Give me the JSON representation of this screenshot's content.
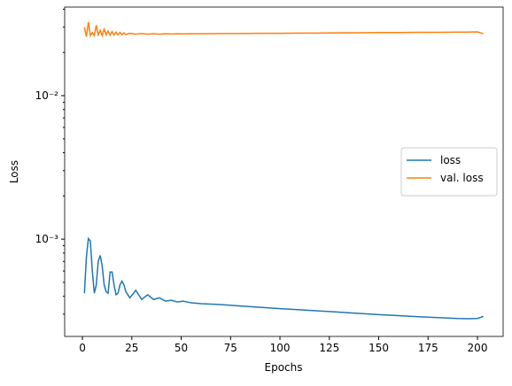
{
  "chart_data": {
    "type": "line",
    "x_label": "Epochs",
    "y_label": "Loss",
    "log_y": true,
    "legend": "center right",
    "x": [
      1,
      2,
      3,
      4,
      5,
      6,
      7,
      8,
      9,
      10,
      11,
      12,
      13,
      14,
      15,
      16,
      17,
      18,
      19,
      20,
      21,
      22,
      24,
      27,
      30,
      33,
      36,
      39,
      42,
      45,
      48,
      51,
      55,
      60,
      70,
      80,
      90,
      100,
      110,
      120,
      130,
      140,
      150,
      160,
      170,
      180,
      190,
      195,
      200,
      203
    ],
    "series": [
      {
        "name": "loss",
        "color": "#1f77b4",
        "values": [
          0.00042,
          0.00075,
          0.00101,
          0.00097,
          0.0006,
          0.00042,
          0.00048,
          0.0007,
          0.00077,
          0.00065,
          0.00048,
          0.00043,
          0.00042,
          0.00059,
          0.00059,
          0.00048,
          0.00041,
          0.00042,
          0.00048,
          0.00051,
          0.00048,
          0.00043,
          0.00039,
          0.00044,
          0.00038,
          0.00041,
          0.00038,
          0.00039,
          0.00037,
          0.000375,
          0.000365,
          0.00037,
          0.00036,
          0.000355,
          0.00035,
          0.000342,
          0.000335,
          0.000328,
          0.000322,
          0.000316,
          0.00031,
          0.000304,
          0.000298,
          0.000293,
          0.000288,
          0.000284,
          0.00028,
          0.000279,
          0.00028,
          0.00029
        ]
      },
      {
        "name": "val. loss",
        "color": "#ff7f0e",
        "values": [
          0.03,
          0.0258,
          0.0325,
          0.0262,
          0.0275,
          0.0262,
          0.031,
          0.0265,
          0.0285,
          0.0262,
          0.029,
          0.0265,
          0.0282,
          0.0264,
          0.028,
          0.0265,
          0.0277,
          0.0265,
          0.0276,
          0.0266,
          0.0274,
          0.0266,
          0.0272,
          0.0268,
          0.0271,
          0.0268,
          0.027,
          0.0268,
          0.027,
          0.0269,
          0.027,
          0.0269,
          0.027,
          0.027,
          0.0271,
          0.0271,
          0.0272,
          0.0272,
          0.0273,
          0.0273,
          0.0274,
          0.0274,
          0.0275,
          0.0275,
          0.0276,
          0.0276,
          0.0277,
          0.0277,
          0.0278,
          0.027
        ]
      }
    ],
    "xlim": [
      -9,
      213
    ],
    "xticks": [
      0,
      25,
      50,
      75,
      100,
      125,
      150,
      175,
      200
    ],
    "ylim": [
      0.00021,
      0.0414
    ],
    "yticks": [
      {
        "value": 0.001,
        "label": "10⁻³"
      },
      {
        "value": 0.01,
        "label": "10⁻²"
      }
    ],
    "yminorticks": [
      0.0003,
      0.0004,
      0.0005,
      0.0006,
      0.0007,
      0.0008,
      0.0009,
      0.002,
      0.003,
      0.004,
      0.005,
      0.006,
      0.007,
      0.008,
      0.009,
      0.02,
      0.03,
      0.04
    ]
  }
}
